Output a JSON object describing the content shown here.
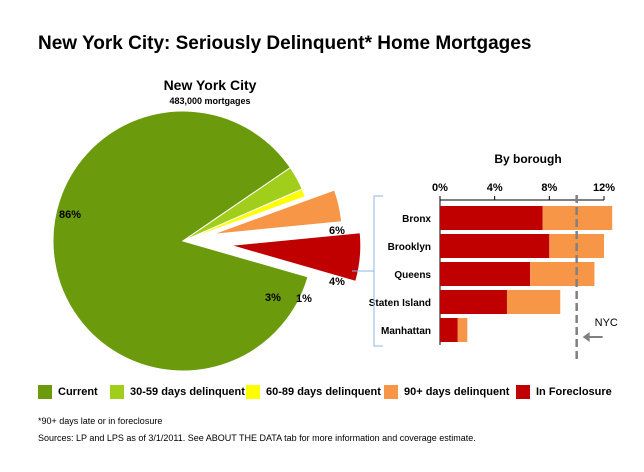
{
  "title": "New York City: Seriously Delinquent* Home Mortgages",
  "pie": {
    "title": "New York City",
    "subtitle": "483,000 mortgages"
  },
  "bar": {
    "title": "By borough",
    "nyc_label": "NYC"
  },
  "colors": {
    "current": "#6B9A0C",
    "d30_59": "#A0CE1A",
    "d60_89": "#FFFF00",
    "d90_plus": "#F79646",
    "foreclosure": "#C00000",
    "bracket": "#8EB4E3",
    "nyc_line": "#808080"
  },
  "legend": [
    {
      "label": "Current",
      "color": "#6B9A0C"
    },
    {
      "label": "30-59 days delinquent",
      "color": "#A0CE1A"
    },
    {
      "label": "60-89 days delinquent",
      "color": "#FFFF00"
    },
    {
      "label": "90+ days delinquent",
      "color": "#F79646"
    },
    {
      "label": "In Foreclosure",
      "color": "#C00000"
    }
  ],
  "notes": {
    "footnote": "*90+ days late or in foreclosure",
    "source": "Sources: LP and LPS as of 3/1/2011. See ABOUT THE DATA tab for more information and coverage estimate."
  },
  "chart_data": [
    {
      "type": "pie",
      "title": "New York City",
      "subtitle": "483,000 mortgages",
      "slices": [
        {
          "label": "Current",
          "value": 86,
          "value_label": "86%"
        },
        {
          "label": "30-59 days delinquent",
          "value": 3,
          "value_label": "3%"
        },
        {
          "label": "60-89 days delinquent",
          "value": 1,
          "value_label": "1%"
        },
        {
          "label": "90+ days delinquent",
          "value": 4,
          "value_label": "4%"
        },
        {
          "label": "In Foreclosure",
          "value": 6,
          "value_label": "6%"
        }
      ]
    },
    {
      "type": "bar",
      "orientation": "horizontal",
      "stacked": true,
      "title": "By borough",
      "categories": [
        "Bronx",
        "Brooklyn",
        "Queens",
        "Staten Island",
        "Manhattan"
      ],
      "series": [
        {
          "name": "In Foreclosure",
          "values": [
            7.5,
            8.0,
            6.6,
            4.9,
            1.3
          ]
        },
        {
          "name": "90+ days delinquent",
          "values": [
            5.1,
            4.0,
            4.7,
            3.9,
            0.7
          ]
        }
      ],
      "xlim": [
        0,
        12
      ],
      "xticks": [
        0,
        4,
        8,
        12
      ],
      "xtick_labels": [
        "0%",
        "4%",
        "8%",
        "12%"
      ],
      "reference_line": {
        "label": "NYC",
        "value": 10
      }
    }
  ]
}
